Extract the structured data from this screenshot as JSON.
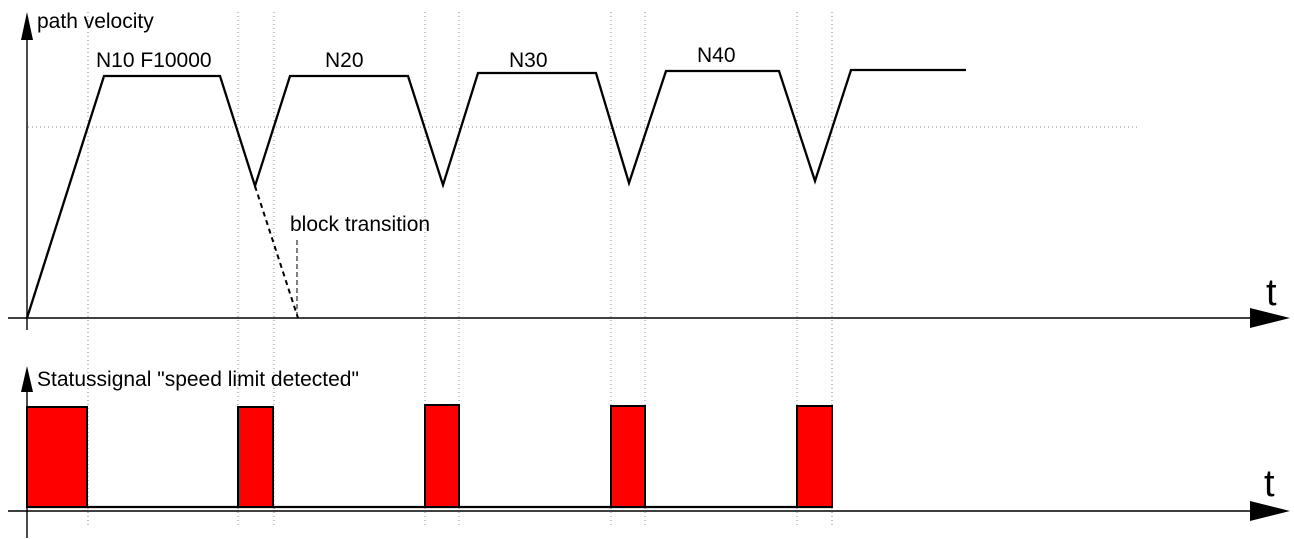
{
  "velocity_plot": {
    "y_label": "path velocity",
    "time_label": "t",
    "block_transition_label": "block transition",
    "blocks": [
      {
        "label": "N10 F10000"
      },
      {
        "label": "N20"
      },
      {
        "label": "N30"
      },
      {
        "label": "N40"
      }
    ]
  },
  "status_plot": {
    "y_label": "Statussignal \"speed limit detected\"",
    "time_label": "t"
  },
  "colors": {
    "signal_fill": "#ff0000",
    "line": "#000000",
    "grid": "#8a8a8a"
  }
}
